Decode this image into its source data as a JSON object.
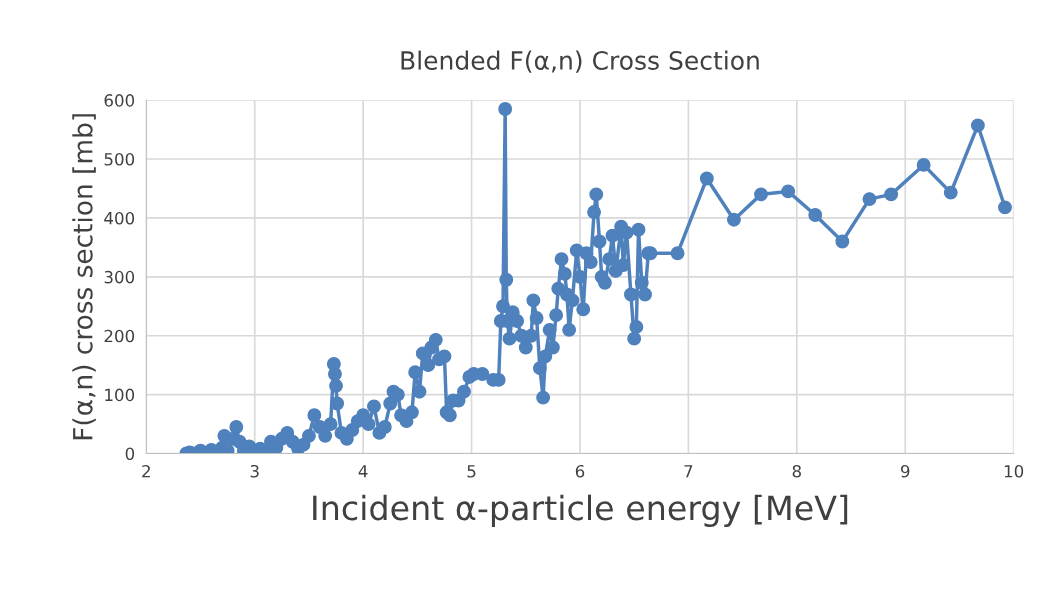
{
  "chart_data": {
    "type": "line",
    "title": "Blended F(α,n) Cross Section",
    "xlabel": "Incident α-particle energy [MeV]",
    "ylabel": "F(α,n) cross section [mb]",
    "xlim": [
      2,
      10
    ],
    "xticks": [
      2,
      3,
      4,
      5,
      6,
      7,
      8,
      9,
      10
    ],
    "ylim": [
      0,
      600
    ],
    "yticks": [
      0,
      100,
      200,
      300,
      400,
      500,
      600
    ],
    "grid": true,
    "marker": "circle",
    "line_style": "solid",
    "series": [
      {
        "color": "#4f81bd",
        "x": [
          2.37,
          2.4,
          2.45,
          2.5,
          2.55,
          2.6,
          2.65,
          2.7,
          2.72,
          2.75,
          2.8,
          2.83,
          2.86,
          2.9,
          2.95,
          3.0,
          3.05,
          3.1,
          3.15,
          3.2,
          3.25,
          3.3,
          3.35,
          3.4,
          3.45,
          3.5,
          3.55,
          3.6,
          3.65,
          3.7,
          3.73,
          3.74,
          3.75,
          3.76,
          3.8,
          3.85,
          3.9,
          3.95,
          4.0,
          4.05,
          4.1,
          4.15,
          4.2,
          4.25,
          4.28,
          4.32,
          4.35,
          4.4,
          4.45,
          4.48,
          4.52,
          4.55,
          4.6,
          4.63,
          4.67,
          4.7,
          4.75,
          4.77,
          4.8,
          4.83,
          4.88,
          4.93,
          4.98,
          5.02,
          5.1,
          5.2,
          5.25,
          5.27,
          5.29,
          5.31,
          5.32,
          5.33,
          5.35,
          5.38,
          5.42,
          5.46,
          5.5,
          5.55,
          5.57,
          5.6,
          5.63,
          5.66,
          5.68,
          5.72,
          5.75,
          5.78,
          5.8,
          5.83,
          5.86,
          5.88,
          5.9,
          5.93,
          5.97,
          6.0,
          6.03,
          6.06,
          6.1,
          6.13,
          6.15,
          6.18,
          6.2,
          6.23,
          6.27,
          6.3,
          6.33,
          6.38,
          6.4,
          6.43,
          6.47,
          6.5,
          6.52,
          6.54,
          6.57,
          6.6,
          6.63,
          6.65,
          6.9,
          7.17,
          7.42,
          7.67,
          7.92,
          8.17,
          8.42,
          8.67,
          8.87,
          9.17,
          9.42,
          9.67,
          9.92
        ],
        "values": [
          0,
          2,
          0,
          5,
          1,
          6,
          2,
          10,
          30,
          5,
          25,
          45,
          20,
          5,
          12,
          3,
          8,
          2,
          20,
          10,
          25,
          35,
          20,
          8,
          15,
          30,
          65,
          45,
          30,
          50,
          152,
          135,
          115,
          85,
          35,
          25,
          40,
          55,
          65,
          50,
          80,
          35,
          45,
          85,
          105,
          100,
          65,
          55,
          70,
          138,
          105,
          170,
          150,
          180,
          193,
          160,
          165,
          70,
          65,
          90,
          90,
          105,
          130,
          135,
          135,
          125,
          125,
          225,
          250,
          585,
          295,
          225,
          195,
          240,
          225,
          200,
          180,
          200,
          260,
          230,
          145,
          95,
          165,
          210,
          180,
          235,
          280,
          330,
          305,
          270,
          210,
          260,
          345,
          300,
          245,
          340,
          325,
          410,
          440,
          360,
          300,
          290,
          330,
          370,
          310,
          385,
          320,
          375,
          270,
          195,
          215,
          380,
          290,
          270,
          340,
          340,
          340,
          467,
          397,
          440,
          445,
          405,
          360,
          432,
          440,
          490,
          443,
          557,
          418
        ]
      }
    ]
  }
}
